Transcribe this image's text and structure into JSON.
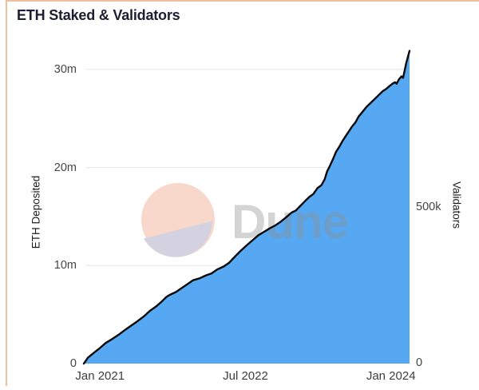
{
  "card": {
    "border_color": "#eec0a2",
    "background_color": "#ffffff"
  },
  "watermark": {
    "text": "Dune",
    "circle_top_color": "#f9d8cc",
    "circle_bottom_color": "#d4d2e0",
    "text_color": "#8f8f8f",
    "text_opacity": 0.38
  },
  "chart_data": {
    "type": "area",
    "title": "ETH Staked & Validators",
    "grid": {
      "show": true,
      "color": "#e8e6e4"
    },
    "x_axis": {
      "t_unit": "months_since_2020-11",
      "t_range": [
        0,
        40.3
      ],
      "ticks": [
        {
          "label": "Jan 2021",
          "t": 2
        },
        {
          "label": "Jul 2022",
          "t": 20
        },
        {
          "label": "Jan 2024",
          "t": 38
        }
      ]
    },
    "left_axis": {
      "label": "ETH Deposited",
      "unit": "millions of ETH",
      "ylim": [
        0,
        32.6
      ],
      "ticks": [
        {
          "label": "0",
          "value": 0
        },
        {
          "label": "10m",
          "value": 10
        },
        {
          "label": "20m",
          "value": 20
        },
        {
          "label": "30m",
          "value": 30
        }
      ]
    },
    "right_axis": {
      "label": "Validators",
      "ticks": [
        {
          "label": "0",
          "eth_equiv": 0
        },
        {
          "label": "500k",
          "eth_equiv": 15.9
        }
      ]
    },
    "series": [
      {
        "name": "ETH Deposited",
        "color_fill": "#57a8f2",
        "color_line": "#0a0a0a",
        "line_width": 2.4,
        "points": [
          [
            0,
            0
          ],
          [
            0.5,
            0.6
          ],
          [
            1.3,
            1.15
          ],
          [
            2,
            1.6
          ],
          [
            2.7,
            2.1
          ],
          [
            3.5,
            2.5
          ],
          [
            4.4,
            3.0
          ],
          [
            5.2,
            3.5
          ],
          [
            5.9,
            3.9
          ],
          [
            6.6,
            4.3
          ],
          [
            7.4,
            4.8
          ],
          [
            8.2,
            5.4
          ],
          [
            8.9,
            5.8
          ],
          [
            9.6,
            6.3
          ],
          [
            10.2,
            6.8
          ],
          [
            10.6,
            7.0
          ],
          [
            11.4,
            7.3
          ],
          [
            12.1,
            7.7
          ],
          [
            12.8,
            8.1
          ],
          [
            13.5,
            8.5
          ],
          [
            14.3,
            8.7
          ],
          [
            15.1,
            9.0
          ],
          [
            15.8,
            9.2
          ],
          [
            16.5,
            9.6
          ],
          [
            17.3,
            9.9
          ],
          [
            18.0,
            10.3
          ],
          [
            18.8,
            11.0
          ],
          [
            19.4,
            11.5
          ],
          [
            20.2,
            12.1
          ],
          [
            20.9,
            12.6
          ],
          [
            21.6,
            13.1
          ],
          [
            22.2,
            13.4
          ],
          [
            23.0,
            13.8
          ],
          [
            23.7,
            14.1
          ],
          [
            24.4,
            14.5
          ],
          [
            25.0,
            14.9
          ],
          [
            25.7,
            15.4
          ],
          [
            26.2,
            15.6
          ],
          [
            26.8,
            16.1
          ],
          [
            27.4,
            16.6
          ],
          [
            27.9,
            17.0
          ],
          [
            28.4,
            17.3
          ],
          [
            28.9,
            17.9
          ],
          [
            29.4,
            18.2
          ],
          [
            29.8,
            18.8
          ],
          [
            30.1,
            19.6
          ],
          [
            30.4,
            20.1
          ],
          [
            30.8,
            20.8
          ],
          [
            31.2,
            21.6
          ],
          [
            31.6,
            22.1
          ],
          [
            32.0,
            22.7
          ],
          [
            32.4,
            23.2
          ],
          [
            32.8,
            23.7
          ],
          [
            33.2,
            24.2
          ],
          [
            33.6,
            24.6
          ],
          [
            34.0,
            25.2
          ],
          [
            34.5,
            25.7
          ],
          [
            35.0,
            26.2
          ],
          [
            35.5,
            26.6
          ],
          [
            36.0,
            27.0
          ],
          [
            36.5,
            27.4
          ],
          [
            37.0,
            27.8
          ],
          [
            37.4,
            28.0
          ],
          [
            37.8,
            28.3
          ],
          [
            38.2,
            28.55
          ],
          [
            38.5,
            28.7
          ],
          [
            38.7,
            28.55
          ],
          [
            39.0,
            29.0
          ],
          [
            39.3,
            29.3
          ],
          [
            39.5,
            29.15
          ],
          [
            39.7,
            29.9
          ],
          [
            39.9,
            30.7
          ],
          [
            40.1,
            31.3
          ],
          [
            40.3,
            31.9
          ]
        ]
      }
    ]
  }
}
